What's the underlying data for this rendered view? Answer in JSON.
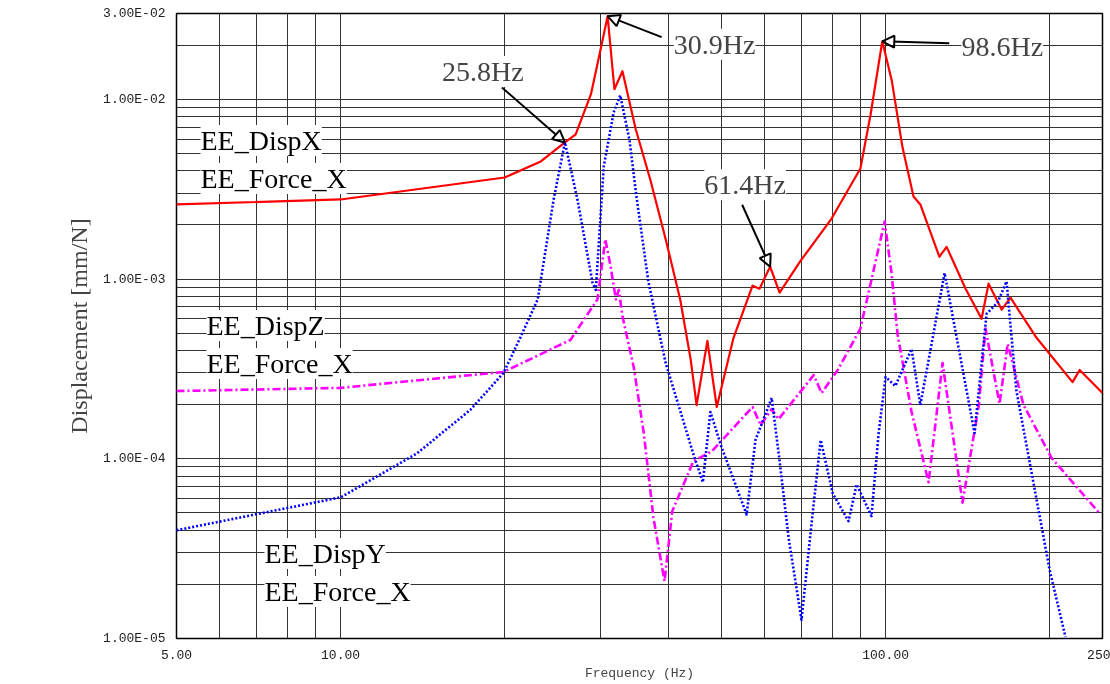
{
  "chart_data": {
    "type": "line",
    "xlabel": "Frequency (Hz)",
    "ylabel": "Displacement [mm/N]",
    "log": "xy",
    "grid": true,
    "marker": "none",
    "xlim": [
      5,
      250
    ],
    "ylim": [
      1e-05,
      0.03
    ],
    "xticks": [
      {
        "value": 5,
        "label": "5.00"
      },
      {
        "value": 6,
        "label": null
      },
      {
        "value": 7,
        "label": null
      },
      {
        "value": 8,
        "label": null
      },
      {
        "value": 9,
        "label": null
      },
      {
        "value": 10,
        "label": "10.00"
      },
      {
        "value": 20,
        "label": null
      },
      {
        "value": 30,
        "label": null
      },
      {
        "value": 40,
        "label": null
      },
      {
        "value": 50,
        "label": null
      },
      {
        "value": 60,
        "label": null
      },
      {
        "value": 70,
        "label": null
      },
      {
        "value": 80,
        "label": null
      },
      {
        "value": 90,
        "label": null
      },
      {
        "value": 100,
        "label": "100.00"
      },
      {
        "value": 200,
        "label": null
      },
      250
    ],
    "yticks": [
      {
        "value": 1e-05,
        "label": "1.00E-05"
      },
      {
        "value": 2e-05,
        "label": null
      },
      {
        "value": 3e-05,
        "label": null
      },
      {
        "value": 4e-05,
        "label": null
      },
      {
        "value": 5e-05,
        "label": null
      },
      {
        "value": 6e-05,
        "label": null
      },
      {
        "value": 7e-05,
        "label": null
      },
      {
        "value": 8e-05,
        "label": null
      },
      {
        "value": 9e-05,
        "label": null
      },
      {
        "value": 0.0001,
        "label": "1.00E-04"
      },
      {
        "value": 0.0002,
        "label": null
      },
      {
        "value": 0.0003,
        "label": null
      },
      {
        "value": 0.0004,
        "label": null
      },
      {
        "value": 0.0005,
        "label": null
      },
      {
        "value": 0.0006,
        "label": null
      },
      {
        "value": 0.0007,
        "label": null
      },
      {
        "value": 0.0008,
        "label": null
      },
      {
        "value": 0.0009,
        "label": null
      },
      {
        "value": 0.001,
        "label": "1.00E-03"
      },
      {
        "value": 0.002,
        "label": null
      },
      {
        "value": 0.003,
        "label": null
      },
      {
        "value": 0.004,
        "label": null
      },
      {
        "value": 0.005,
        "label": null
      },
      {
        "value": 0.006,
        "label": null
      },
      {
        "value": 0.007,
        "label": null
      },
      {
        "value": 0.008,
        "label": null
      },
      {
        "value": 0.009,
        "label": null
      },
      {
        "value": 0.01,
        "label": "1.00E-02"
      },
      {
        "value": 0.02,
        "label": null
      },
      {
        "value": 0.03,
        "label": "3.00E-02"
      }
    ],
    "series": [
      {
        "name": "EE_DispX\nEE_Force_X",
        "color": "#ff0000",
        "line_style": "solid",
        "x": [
          5,
          10,
          20,
          23.3,
          25.8,
          27.0,
          28.8,
          30.0,
          30.9,
          31.8,
          32.9,
          34.8,
          37.0,
          39.5,
          42.0,
          43.9,
          45.0,
          47.1,
          49.0,
          52.6,
          57.0,
          58.7,
          61.4,
          63.9,
          69.8,
          79.6,
          89.9,
          93.8,
          98.6,
          102.6,
          107.4,
          112.5,
          115.8,
          125.5,
          129.4,
          140.2,
          150.0,
          154.5,
          163.3,
          169.5,
          189.2,
          220.3,
          227.0,
          250
        ],
        "values": [
          0.0026,
          0.00277,
          0.00367,
          0.00451,
          0.00575,
          0.00638,
          0.01067,
          0.019,
          0.029,
          0.01137,
          0.01432,
          0.00681,
          0.00358,
          0.00166,
          0.000767,
          0.000355,
          0.000199,
          0.000453,
          0.000194,
          0.000471,
          0.000918,
          0.000883,
          0.00117,
          0.000839,
          0.00126,
          0.00217,
          0.00412,
          0.00815,
          0.021,
          0.01277,
          0.0054,
          0.00288,
          0.0026,
          0.00133,
          0.00151,
          0.000883,
          0.000601,
          0.000942,
          0.000675,
          0.000787,
          0.000471,
          0.000267,
          0.000312,
          0.000232
        ]
      },
      {
        "name": "EE_DispZ\nEE_Force_X",
        "color": "#ff00ff",
        "line_style": "dashed",
        "x": [
          5,
          10,
          19.9,
          26.4,
          29.6,
          30.6,
          31.3,
          32.0,
          32.4,
          32.9,
          34.5,
          36.0,
          37.5,
          39.3,
          40.6,
          44.4,
          48.0,
          51.5,
          57.0,
          59.0,
          61.8,
          63.6,
          73.8,
          76.3,
          81.7,
          89.9,
          99.6,
          102.6,
          105.2,
          111.6,
          119.9,
          127.2,
          138.4,
          148.3,
          152.5,
          161.8,
          167.5,
          179.1,
          201.6,
          247.9
        ],
        "values": [
          0.000238,
          0.000248,
          0.000304,
          0.000458,
          0.00077,
          0.00166,
          0.00117,
          0.00077,
          0.00087,
          0.00062,
          0.000324,
          0.000139,
          4.7e-05,
          2.08e-05,
          5.1e-05,
          9.7e-05,
          0.00011,
          0.000139,
          0.000194,
          0.000154,
          0.000189,
          0.000166,
          0.000292,
          0.000232,
          0.000312,
          0.00053,
          0.00209,
          0.00106,
          0.00049,
          0.000182,
          7.4e-05,
          0.000341,
          5.7e-05,
          0.000199,
          0.00053,
          0.000202,
          0.000435,
          0.000199,
          0.000101,
          4.9e-05
        ]
      },
      {
        "name": "EE_DispY\nEE_Force_X",
        "color": "#0000ff",
        "line_style": "dotted",
        "x": [
          5,
          10,
          13.8,
          17.3,
          19.9,
          21.4,
          23.0,
          24.6,
          25.8,
          27.2,
          29.0,
          29.4,
          30.4,
          31.7,
          32.6,
          33.9,
          34.9,
          36.7,
          38.6,
          39.5,
          44.4,
          46.2,
          47.7,
          50.0,
          55.6,
          57.7,
          61.8,
          63.9,
          66.4,
          70.1,
          73.1,
          76.0,
          80.0,
          85.5,
          88.5,
          94.2,
          97.1,
          100,
          104.2,
          111.6,
          115.8,
          128.3,
          145.6,
          153.2,
          160.5,
          166.7,
          168.9,
          173.8,
          200,
          213.8
        ],
        "values": [
          4e-05,
          6.1e-05,
          0.000107,
          0.000187,
          0.0003,
          0.000477,
          0.00077,
          0.00277,
          0.00575,
          0.00277,
          0.00095,
          0.00087,
          0.00423,
          0.00846,
          0.0105,
          0.0059,
          0.00288,
          0.00097,
          0.00047,
          0.00034,
          0.000106,
          7.4e-05,
          0.000182,
          0.000116,
          4.9e-05,
          0.000127,
          0.000218,
          9.7e-05,
          3.6e-05,
          1.27e-05,
          4.3e-05,
          0.000127,
          6.4e-05,
          4.5e-05,
          7.2e-05,
          4.8e-05,
          0.000139,
          0.000285,
          0.000254,
          0.000408,
          0.000199,
          0.00108,
          0.000139,
          0.00064,
          0.00074,
          0.00097,
          0.00062,
          0.000238,
          2.4e-05,
          1.02e-05
        ]
      }
    ],
    "annotations": [
      {
        "text": "25.8Hz",
        "x": 25.8,
        "y": 0.00575
      },
      {
        "text": "30.9Hz",
        "x": 30.9,
        "y": 0.029
      },
      {
        "text": "61.4Hz",
        "x": 61.4,
        "y": 0.00117
      },
      {
        "text": "98.6Hz",
        "x": 98.6,
        "y": 0.021
      }
    ]
  }
}
